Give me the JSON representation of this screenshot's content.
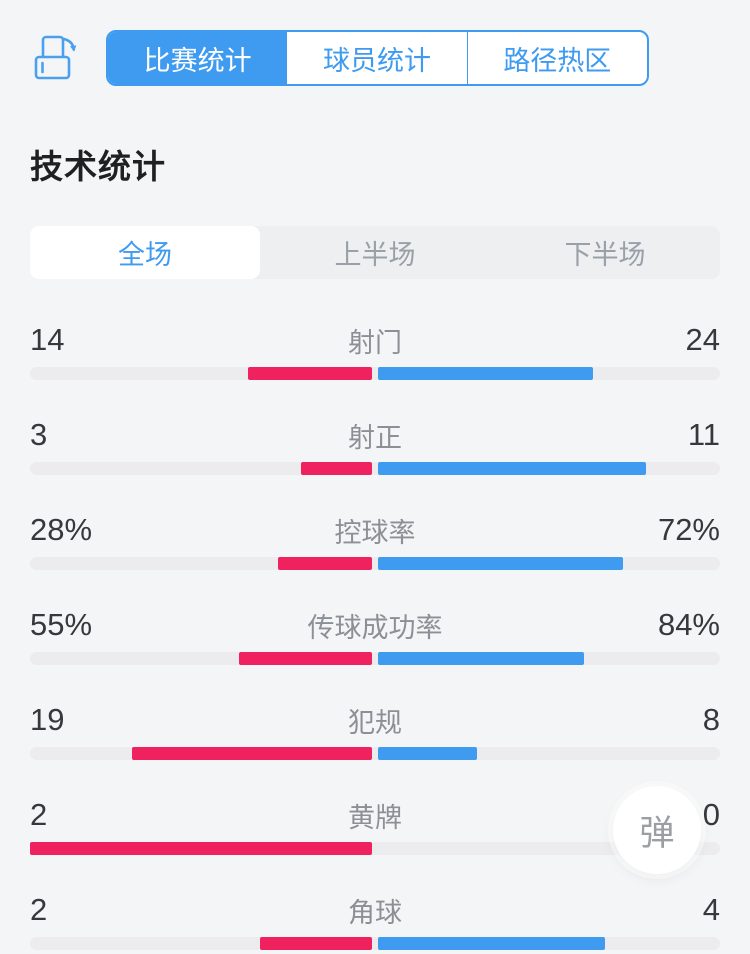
{
  "page": {
    "background": "#f4f5f6"
  },
  "colors": {
    "accent_blue": "#3f9bf0",
    "home_pink": "#ef215e",
    "away_blue": "#3f9bf0",
    "track_gray": "#ececee"
  },
  "header": {
    "icons": [
      {
        "name": "rotate-screen-icon"
      }
    ],
    "tabs": [
      {
        "label": "比赛统计",
        "active": true
      },
      {
        "label": "球员统计",
        "active": false
      },
      {
        "label": "路径热区",
        "active": false
      }
    ]
  },
  "section": {
    "title": "技术统计"
  },
  "period_tabs": [
    {
      "label": "全场",
      "active": true
    },
    {
      "label": "上半场",
      "active": false
    },
    {
      "label": "下半场",
      "active": false
    }
  ],
  "fab": {
    "label": "弹"
  },
  "chart_data": {
    "type": "bar",
    "subtype": "diverging-horizontal-duel",
    "title": "技术统计",
    "period_selected": "全场",
    "legend_position": "none",
    "home_color": "#ef215e",
    "away_color": "#3f9bf0",
    "bar_rule": "home_len + away_len = 50% of track, split by value ratio, growing outward from center",
    "rows": [
      {
        "name": "射门",
        "home": 14,
        "away": 24,
        "home_display": "14",
        "away_display": "24"
      },
      {
        "name": "射正",
        "home": 3,
        "away": 11,
        "home_display": "3",
        "away_display": "11"
      },
      {
        "name": "控球率",
        "home": 28,
        "away": 72,
        "home_display": "28%",
        "away_display": "72%"
      },
      {
        "name": "传球成功率",
        "home": 55,
        "away": 84,
        "home_display": "55%",
        "away_display": "84%"
      },
      {
        "name": "犯规",
        "home": 19,
        "away": 8,
        "home_display": "19",
        "away_display": "8"
      },
      {
        "name": "黄牌",
        "home": 2,
        "away": 0,
        "home_display": "2",
        "away_display": "0"
      },
      {
        "name": "角球",
        "home": 2,
        "away": 4,
        "home_display": "2",
        "away_display": "4"
      }
    ]
  }
}
